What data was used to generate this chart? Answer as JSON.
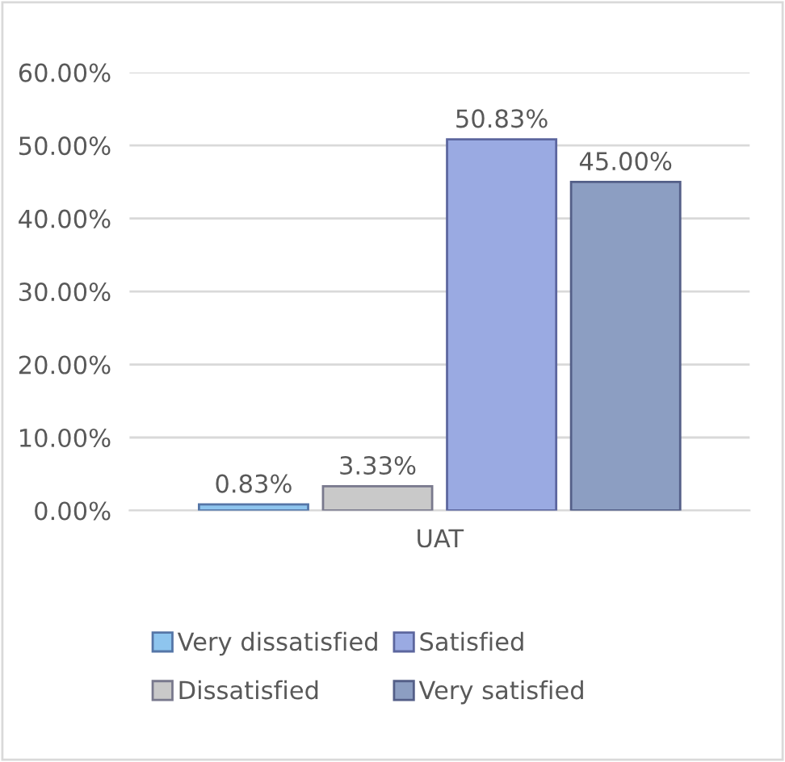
{
  "chart_data": {
    "type": "bar",
    "categories": [
      "UAT"
    ],
    "series": [
      {
        "name": "Very dissatisfied",
        "color": "#8ec5ee",
        "values": [
          0.83
        ],
        "value_labels": [
          "0.83%"
        ]
      },
      {
        "name": "Dissatisfied",
        "color": "#c9c9c9",
        "values": [
          3.33
        ],
        "value_labels": [
          "3.33%"
        ]
      },
      {
        "name": "Satisfied",
        "color": "#9aaae2",
        "values": [
          50.83
        ],
        "value_labels": [
          "50.83%"
        ]
      },
      {
        "name": "Very satisfied",
        "color": "#8c9ec2",
        "values": [
          45.0
        ],
        "value_labels": [
          "45.00%"
        ]
      }
    ],
    "ylim": [
      0,
      60
    ],
    "yticks": [
      {
        "value": 0,
        "label": "0.00%"
      },
      {
        "value": 10,
        "label": "10.00%"
      },
      {
        "value": 20,
        "label": "20.00%"
      },
      {
        "value": 30,
        "label": "30.00%"
      },
      {
        "value": 40,
        "label": "40.00%"
      },
      {
        "value": 50,
        "label": "50.00%"
      },
      {
        "value": 60,
        "label": "60.00%"
      }
    ],
    "grid": "y",
    "legend": "bottom"
  }
}
